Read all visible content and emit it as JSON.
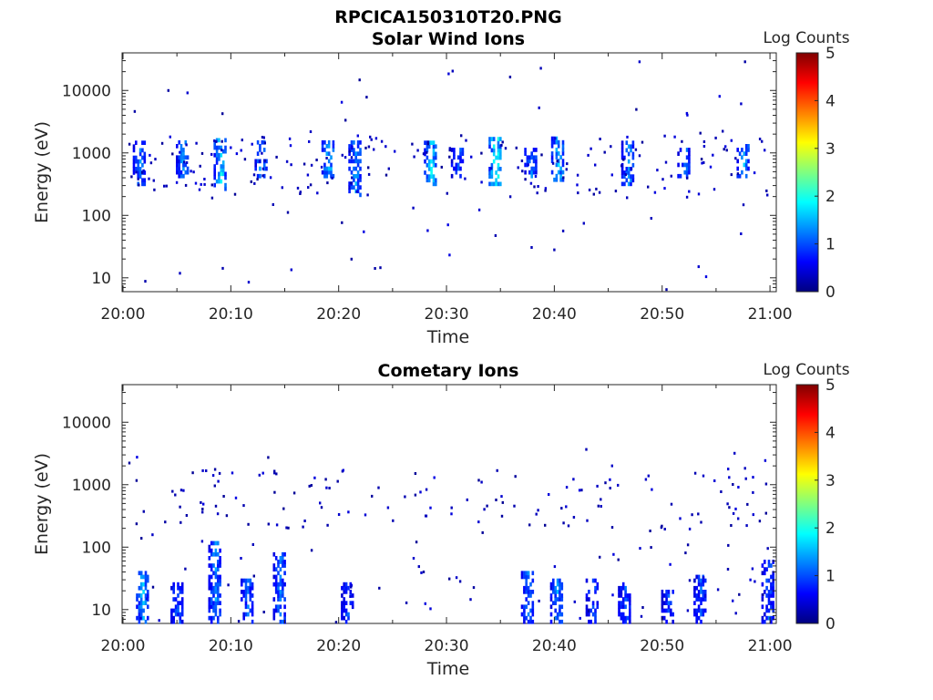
{
  "figure_title": "RPCICA150310T20.PNG",
  "colormap_stops": [
    "#000080",
    "#0000ff",
    "#00ffff",
    "#ffff00",
    "#ff0000",
    "#800000"
  ],
  "chart_data": [
    {
      "type": "heatmap",
      "title": "Solar Wind Ions",
      "xlabel": "Time",
      "ylabel": "Energy (eV)",
      "xlim": [
        "20:00",
        "21:00"
      ],
      "x_ticks": [
        "20:00",
        "20:10",
        "20:20",
        "20:30",
        "20:40",
        "20:50",
        "21:00"
      ],
      "y_scale": "log",
      "ylim": [
        6,
        40000
      ],
      "y_ticks": [
        "10",
        "100",
        "1000",
        "10000"
      ],
      "colorbar": {
        "label": "Log Counts",
        "range": [
          0,
          5
        ],
        "ticks": [
          "0",
          "1",
          "2",
          "3",
          "4",
          "5"
        ]
      },
      "bursts": [
        {
          "t": 1.5,
          "e_lo": 300,
          "e_hi": 1500,
          "level": 1.4
        },
        {
          "t": 5.5,
          "e_lo": 400,
          "e_hi": 1400,
          "level": 1.5
        },
        {
          "t": 9.0,
          "e_lo": 250,
          "e_hi": 1600,
          "level": 1.9
        },
        {
          "t": 12.8,
          "e_lo": 400,
          "e_hi": 1500,
          "level": 1.6
        },
        {
          "t": 19.0,
          "e_lo": 400,
          "e_hi": 1500,
          "level": 1.8
        },
        {
          "t": 21.5,
          "e_lo": 200,
          "e_hi": 1400,
          "level": 1.6
        },
        {
          "t": 28.5,
          "e_lo": 300,
          "e_hi": 1500,
          "level": 1.9
        },
        {
          "t": 31.0,
          "e_lo": 400,
          "e_hi": 1200,
          "level": 1.3
        },
        {
          "t": 34.5,
          "e_lo": 300,
          "e_hi": 1600,
          "level": 2.3
        },
        {
          "t": 37.8,
          "e_lo": 400,
          "e_hi": 1200,
          "level": 1.4
        },
        {
          "t": 40.3,
          "e_lo": 350,
          "e_hi": 1700,
          "level": 1.8
        },
        {
          "t": 46.8,
          "e_lo": 300,
          "e_hi": 1500,
          "level": 1.5
        },
        {
          "t": 52.0,
          "e_lo": 400,
          "e_hi": 1200,
          "level": 1.4
        },
        {
          "t": 57.5,
          "e_lo": 400,
          "e_hi": 1300,
          "level": 1.6
        }
      ]
    },
    {
      "type": "heatmap",
      "title": "Cometary Ions",
      "xlabel": "Time",
      "ylabel": "Energy (eV)",
      "xlim": [
        "20:00",
        "21:00"
      ],
      "x_ticks": [
        "20:00",
        "20:10",
        "20:20",
        "20:30",
        "20:40",
        "20:50",
        "21:00"
      ],
      "y_scale": "log",
      "ylim": [
        6,
        40000
      ],
      "y_ticks": [
        "10",
        "100",
        "1000",
        "10000"
      ],
      "colorbar": {
        "label": "Log Counts",
        "range": [
          0,
          5
        ],
        "ticks": [
          "0",
          "1",
          "2",
          "3",
          "4",
          "5"
        ]
      },
      "bursts": [
        {
          "t": 1.8,
          "e_lo": 6,
          "e_hi": 40,
          "level": 1.8
        },
        {
          "t": 5.0,
          "e_lo": 6,
          "e_hi": 25,
          "level": 1.2
        },
        {
          "t": 8.5,
          "e_lo": 6,
          "e_hi": 120,
          "level": 1.5
        },
        {
          "t": 11.5,
          "e_lo": 6,
          "e_hi": 30,
          "level": 1.3
        },
        {
          "t": 14.5,
          "e_lo": 6,
          "e_hi": 80,
          "level": 1.4
        },
        {
          "t": 20.8,
          "e_lo": 6,
          "e_hi": 25,
          "level": 1.1
        },
        {
          "t": 37.5,
          "e_lo": 6,
          "e_hi": 40,
          "level": 1.3
        },
        {
          "t": 40.2,
          "e_lo": 6,
          "e_hi": 30,
          "level": 1.5
        },
        {
          "t": 43.5,
          "e_lo": 6,
          "e_hi": 30,
          "level": 1.2
        },
        {
          "t": 46.5,
          "e_lo": 6,
          "e_hi": 25,
          "level": 1.2
        },
        {
          "t": 50.5,
          "e_lo": 6,
          "e_hi": 20,
          "level": 1.1
        },
        {
          "t": 53.5,
          "e_lo": 6,
          "e_hi": 35,
          "level": 1.2
        },
        {
          "t": 59.8,
          "e_lo": 6,
          "e_hi": 60,
          "level": 1.2
        }
      ]
    }
  ]
}
